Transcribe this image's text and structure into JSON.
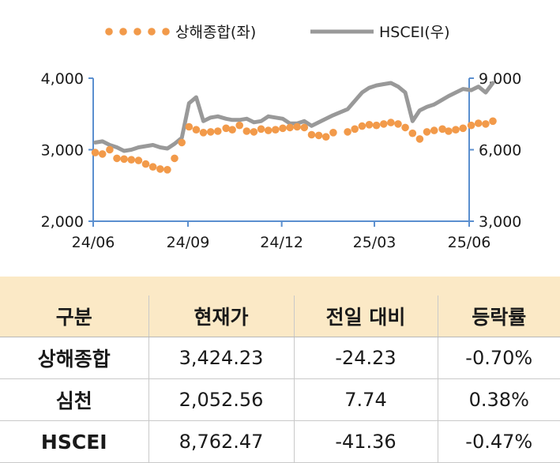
{
  "chart_data": {
    "type": "line",
    "title": "",
    "legend_placement": "top",
    "x_tick_labels": [
      "24/06",
      "24/09",
      "24/12",
      "25/03",
      "25/06"
    ],
    "y_left": {
      "ylim": [
        2000,
        4000
      ],
      "tick_labels": [
        "4,000",
        "3,000",
        "2,000"
      ],
      "ticks": [
        4000,
        3000,
        2000
      ]
    },
    "y_right": {
      "ylim": [
        3000,
        9000
      ],
      "tick_labels": [
        "9,000",
        "6,000",
        "3,000"
      ],
      "ticks": [
        9000,
        6000,
        3000
      ]
    },
    "grid": false,
    "series": [
      {
        "name": "상해종합(좌)",
        "axis": "left",
        "style": "dotted",
        "color": "#f29a4a",
        "x": [
          "2024-06-03",
          "2024-06-10",
          "2024-06-17",
          "2024-06-24",
          "2024-07-01",
          "2024-07-08",
          "2024-07-15",
          "2024-07-22",
          "2024-07-29",
          "2024-08-05",
          "2024-08-12",
          "2024-08-19",
          "2024-08-26",
          "2024-09-02",
          "2024-09-09",
          "2024-09-16",
          "2024-09-23",
          "2024-09-30",
          "2024-10-08",
          "2024-10-14",
          "2024-10-21",
          "2024-10-28",
          "2024-11-04",
          "2024-11-11",
          "2024-11-18",
          "2024-11-25",
          "2024-12-02",
          "2024-12-09",
          "2024-12-16",
          "2024-12-23",
          "2024-12-30",
          "2025-01-06",
          "2025-01-13",
          "2025-01-20",
          "2025-02-03",
          "2025-02-10",
          "2025-02-17",
          "2025-02-24",
          "2025-03-03",
          "2025-03-10",
          "2025-03-17",
          "2025-03-24",
          "2025-03-31",
          "2025-04-07",
          "2025-04-14",
          "2025-04-21",
          "2025-04-28",
          "2025-05-06",
          "2025-05-12",
          "2025-05-19",
          "2025-05-26",
          "2025-06-03",
          "2025-06-10",
          "2025-06-17",
          "2025-06-24"
        ],
        "values": [
          2960,
          2940,
          3000,
          2880,
          2870,
          2860,
          2850,
          2800,
          2760,
          2730,
          2720,
          2880,
          3100,
          3320,
          3280,
          3240,
          3250,
          3260,
          3300,
          3280,
          3340,
          3260,
          3250,
          3290,
          3270,
          3280,
          3300,
          3310,
          3320,
          3310,
          3210,
          3200,
          3180,
          3240,
          3250,
          3290,
          3330,
          3350,
          3340,
          3360,
          3380,
          3360,
          3310,
          3230,
          3150,
          3250,
          3270,
          3290,
          3260,
          3280,
          3300,
          3340,
          3370,
          3360,
          3400
        ]
      },
      {
        "name": "HSCEI(우)",
        "axis": "right",
        "style": "solid",
        "color": "#999999",
        "x": [
          "2024-06-03",
          "2024-06-10",
          "2024-06-17",
          "2024-06-24",
          "2024-07-01",
          "2024-07-08",
          "2024-07-15",
          "2024-07-22",
          "2024-07-29",
          "2024-08-05",
          "2024-08-12",
          "2024-08-19",
          "2024-08-26",
          "2024-09-02",
          "2024-09-09",
          "2024-09-16",
          "2024-09-23",
          "2024-09-30",
          "2024-10-08",
          "2024-10-14",
          "2024-10-21",
          "2024-10-28",
          "2024-11-04",
          "2024-11-11",
          "2024-11-18",
          "2024-11-25",
          "2024-12-02",
          "2024-12-09",
          "2024-12-16",
          "2024-12-23",
          "2024-12-30",
          "2025-01-06",
          "2025-01-13",
          "2025-01-20",
          "2025-02-03",
          "2025-02-10",
          "2025-02-17",
          "2025-02-24",
          "2025-03-03",
          "2025-03-10",
          "2025-03-17",
          "2025-03-24",
          "2025-03-31",
          "2025-04-07",
          "2025-04-14",
          "2025-04-21",
          "2025-04-28",
          "2025-05-06",
          "2025-05-12",
          "2025-05-19",
          "2025-05-26",
          "2025-06-03",
          "2025-06-10",
          "2025-06-17",
          "2025-06-24"
        ],
        "values": [
          6300,
          6350,
          6200,
          6100,
          5950,
          6000,
          6100,
          6150,
          6200,
          6100,
          6050,
          6250,
          6500,
          7950,
          8200,
          7200,
          7350,
          7400,
          7300,
          7250,
          7250,
          7300,
          7150,
          7200,
          7400,
          7350,
          7300,
          7100,
          7100,
          7200,
          7000,
          7150,
          7300,
          7450,
          7700,
          8050,
          8400,
          8600,
          8700,
          8750,
          8800,
          8650,
          8400,
          7200,
          7650,
          7800,
          7900,
          8100,
          8250,
          8400,
          8550,
          8500,
          8650,
          8400,
          8800
        ]
      }
    ]
  },
  "table": {
    "headers": [
      "구분",
      "현재가",
      "전일 대비",
      "등락률"
    ],
    "rows": [
      [
        "상해종합",
        "3,424.23",
        "-24.23",
        "-0.70%"
      ],
      [
        "심천",
        "2,052.56",
        "7.74",
        "0.38%"
      ],
      [
        "HSCEI",
        "8,762.47",
        "-41.36",
        "-0.47%"
      ]
    ]
  }
}
